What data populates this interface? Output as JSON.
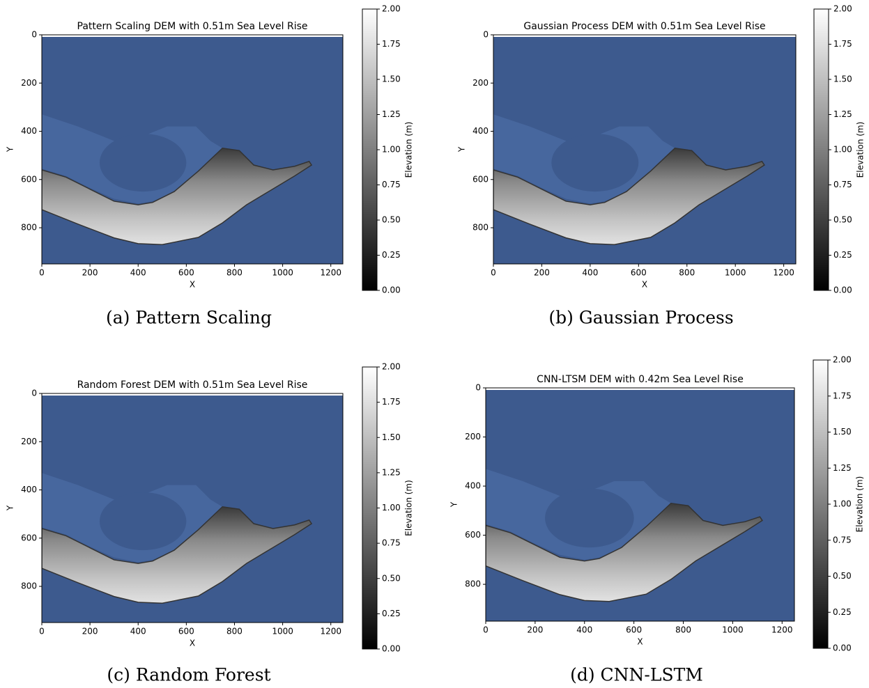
{
  "chart_data": [
    {
      "type": "image",
      "title": "Pattern Scaling DEM with 0.51m Sea Level Rise",
      "xlabel": "X",
      "ylabel": "Y",
      "xlim": [
        0,
        1250
      ],
      "ylim": [
        950,
        0
      ],
      "xticks": [
        0,
        200,
        400,
        600,
        800,
        1000,
        1200
      ],
      "yticks": [
        0,
        200,
        400,
        600,
        800
      ],
      "colormap": "gray",
      "water_color": "#3d5a8e",
      "colorbar_label": "Elevation (m)",
      "clim": [
        0,
        2
      ],
      "cticks": [
        {
          "value": 0,
          "label": "0.00"
        },
        {
          "value": 0.25,
          "label": "0.25"
        },
        {
          "value": 0.5,
          "label": "0.50"
        },
        {
          "value": 0.75,
          "label": "0.75"
        },
        {
          "value": 1,
          "label": "1.00"
        },
        {
          "value": 1.25,
          "label": "1.25"
        },
        {
          "value": 1.5,
          "label": "1.50"
        },
        {
          "value": 1.75,
          "label": "1.75"
        },
        {
          "value": 2,
          "label": "2.00"
        }
      ],
      "caption": "(a) Pattern Scaling"
    },
    {
      "type": "image",
      "title": "Gaussian Process DEM with 0.51m Sea Level Rise",
      "xlabel": "X",
      "ylabel": "Y",
      "xlim": [
        0,
        1250
      ],
      "ylim": [
        950,
        0
      ],
      "xticks": [
        0,
        200,
        400,
        600,
        800,
        1000,
        1200
      ],
      "yticks": [
        0,
        200,
        400,
        600,
        800
      ],
      "colormap": "gray",
      "water_color": "#3d5a8e",
      "colorbar_label": "Elevation (m)",
      "clim": [
        0,
        2
      ],
      "cticks": [
        {
          "value": 0,
          "label": "0.00"
        },
        {
          "value": 0.25,
          "label": "0.25"
        },
        {
          "value": 0.5,
          "label": "0.50"
        },
        {
          "value": 0.75,
          "label": "0.75"
        },
        {
          "value": 1,
          "label": "1.00"
        },
        {
          "value": 1.25,
          "label": "1.25"
        },
        {
          "value": 1.5,
          "label": "1.50"
        },
        {
          "value": 1.75,
          "label": "1.75"
        },
        {
          "value": 2,
          "label": "2.00"
        }
      ],
      "caption": "(b) Gaussian Process"
    },
    {
      "type": "image",
      "title": "Random Forest DEM with 0.51m Sea Level Rise",
      "xlabel": "X",
      "ylabel": "Y",
      "xlim": [
        0,
        1250
      ],
      "ylim": [
        950,
        0
      ],
      "xticks": [
        0,
        200,
        400,
        600,
        800,
        1000,
        1200
      ],
      "yticks": [
        0,
        200,
        400,
        600,
        800
      ],
      "colormap": "gray",
      "water_color": "#3d5a8e",
      "colorbar_label": "Elevation (m)",
      "clim": [
        0,
        2
      ],
      "cticks": [
        {
          "value": 0,
          "label": "0.00"
        },
        {
          "value": 0.25,
          "label": "0.25"
        },
        {
          "value": 0.5,
          "label": "0.50"
        },
        {
          "value": 0.75,
          "label": "0.75"
        },
        {
          "value": 1,
          "label": "1.00"
        },
        {
          "value": 1.25,
          "label": "1.25"
        },
        {
          "value": 1.5,
          "label": "1.50"
        },
        {
          "value": 1.75,
          "label": "1.75"
        },
        {
          "value": 2,
          "label": "2.00"
        }
      ],
      "caption": "(c) Random Forest"
    },
    {
      "type": "image",
      "title": "CNN-LTSM DEM with 0.42m Sea Level Rise",
      "xlabel": "X",
      "ylabel": "Y",
      "xlim": [
        0,
        1250
      ],
      "ylim": [
        950,
        0
      ],
      "xticks": [
        0,
        200,
        400,
        600,
        800,
        1000,
        1200
      ],
      "yticks": [
        0,
        200,
        400,
        600,
        800
      ],
      "colormap": "gray",
      "water_color": "#3d5a8e",
      "colorbar_label": "Elevation (m)",
      "clim": [
        0,
        2
      ],
      "cticks": [
        {
          "value": 0,
          "label": "0.00"
        },
        {
          "value": 0.25,
          "label": "0.25"
        },
        {
          "value": 0.5,
          "label": "0.50"
        },
        {
          "value": 0.75,
          "label": "0.75"
        },
        {
          "value": 1,
          "label": "1.00"
        },
        {
          "value": 1.25,
          "label": "1.25"
        },
        {
          "value": 1.5,
          "label": "1.50"
        },
        {
          "value": 1.75,
          "label": "1.75"
        },
        {
          "value": 2,
          "label": "2.00"
        }
      ],
      "caption": "(d) CNN-LSTM"
    }
  ]
}
